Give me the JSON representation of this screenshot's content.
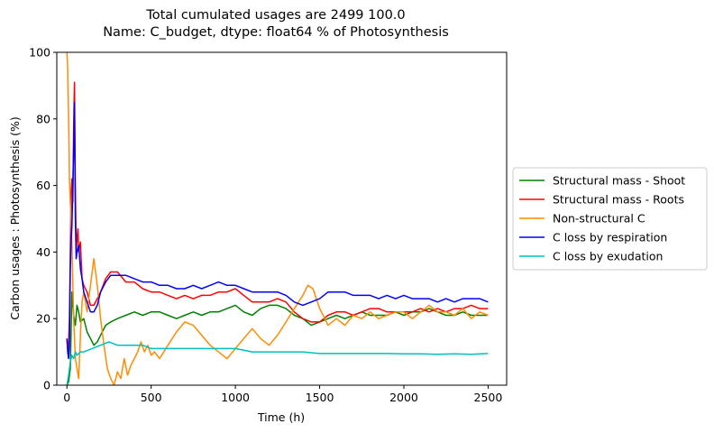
{
  "chart_data": {
    "type": "line",
    "title": [
      "Total cumulated usages are 2499    100.0",
      "Name: C_budget, dtype: float64 % of Photosynthesis"
    ],
    "xlabel": "Time (h)",
    "ylabel": "Carbon usages : Photosynthesis (%)",
    "xlim": [
      -60,
      2610
    ],
    "ylim": [
      0,
      100
    ],
    "xticks": [
      0,
      500,
      1000,
      1500,
      2000,
      2500
    ],
    "yticks": [
      0,
      20,
      40,
      60,
      80,
      100
    ],
    "grid": false,
    "legend_position": "outside-right",
    "series": [
      {
        "name": "Structural mass - Shoot",
        "color": "#008000",
        "points": [
          [
            0,
            0
          ],
          [
            10,
            1
          ],
          [
            20,
            5
          ],
          [
            30,
            28
          ],
          [
            40,
            21
          ],
          [
            50,
            18
          ],
          [
            60,
            24
          ],
          [
            70,
            22
          ],
          [
            80,
            19
          ],
          [
            100,
            20
          ],
          [
            120,
            16
          ],
          [
            140,
            14
          ],
          [
            160,
            12
          ],
          [
            180,
            13
          ],
          [
            200,
            15
          ],
          [
            230,
            18
          ],
          [
            260,
            19
          ],
          [
            300,
            20
          ],
          [
            350,
            21
          ],
          [
            400,
            22
          ],
          [
            450,
            21
          ],
          [
            500,
            22
          ],
          [
            550,
            22
          ],
          [
            600,
            21
          ],
          [
            650,
            20
          ],
          [
            700,
            21
          ],
          [
            750,
            22
          ],
          [
            800,
            21
          ],
          [
            850,
            22
          ],
          [
            900,
            22
          ],
          [
            950,
            23
          ],
          [
            1000,
            24
          ],
          [
            1050,
            22
          ],
          [
            1100,
            21
          ],
          [
            1150,
            23
          ],
          [
            1200,
            24
          ],
          [
            1250,
            24
          ],
          [
            1300,
            23
          ],
          [
            1350,
            21
          ],
          [
            1400,
            20
          ],
          [
            1450,
            18
          ],
          [
            1500,
            19
          ],
          [
            1550,
            20
          ],
          [
            1600,
            21
          ],
          [
            1650,
            20
          ],
          [
            1700,
            21
          ],
          [
            1750,
            22
          ],
          [
            1800,
            21
          ],
          [
            1850,
            21
          ],
          [
            1900,
            21
          ],
          [
            1950,
            22
          ],
          [
            2000,
            21
          ],
          [
            2050,
            22
          ],
          [
            2100,
            22
          ],
          [
            2150,
            23
          ],
          [
            2200,
            22
          ],
          [
            2250,
            21
          ],
          [
            2300,
            21
          ],
          [
            2350,
            22
          ],
          [
            2400,
            21
          ],
          [
            2450,
            21
          ],
          [
            2500,
            21
          ]
        ]
      },
      {
        "name": "Structural mass - Roots",
        "color": "#ff0000",
        "points": [
          [
            0,
            14
          ],
          [
            8,
            10
          ],
          [
            15,
            20
          ],
          [
            20,
            40
          ],
          [
            25,
            58
          ],
          [
            30,
            62
          ],
          [
            35,
            55
          ],
          [
            40,
            78
          ],
          [
            45,
            91
          ],
          [
            50,
            60
          ],
          [
            55,
            40
          ],
          [
            60,
            44
          ],
          [
            65,
            47
          ],
          [
            70,
            40
          ],
          [
            80,
            43
          ],
          [
            90,
            32
          ],
          [
            100,
            30
          ],
          [
            120,
            28
          ],
          [
            140,
            24
          ],
          [
            160,
            24
          ],
          [
            180,
            26
          ],
          [
            200,
            28
          ],
          [
            230,
            32
          ],
          [
            260,
            34
          ],
          [
            300,
            34
          ],
          [
            350,
            31
          ],
          [
            400,
            31
          ],
          [
            450,
            29
          ],
          [
            500,
            28
          ],
          [
            550,
            28
          ],
          [
            600,
            27
          ],
          [
            650,
            26
          ],
          [
            700,
            27
          ],
          [
            750,
            26
          ],
          [
            800,
            27
          ],
          [
            850,
            27
          ],
          [
            900,
            28
          ],
          [
            950,
            28
          ],
          [
            1000,
            29
          ],
          [
            1050,
            27
          ],
          [
            1100,
            25
          ],
          [
            1150,
            25
          ],
          [
            1200,
            25
          ],
          [
            1250,
            26
          ],
          [
            1300,
            25
          ],
          [
            1350,
            22
          ],
          [
            1400,
            20
          ],
          [
            1450,
            19
          ],
          [
            1500,
            19
          ],
          [
            1550,
            21
          ],
          [
            1600,
            22
          ],
          [
            1650,
            22
          ],
          [
            1700,
            21
          ],
          [
            1750,
            22
          ],
          [
            1800,
            23
          ],
          [
            1850,
            23
          ],
          [
            1900,
            22
          ],
          [
            1950,
            22
          ],
          [
            2000,
            22
          ],
          [
            2050,
            22
          ],
          [
            2100,
            23
          ],
          [
            2150,
            22
          ],
          [
            2200,
            23
          ],
          [
            2250,
            22
          ],
          [
            2300,
            23
          ],
          [
            2350,
            23
          ],
          [
            2400,
            24
          ],
          [
            2450,
            23
          ],
          [
            2500,
            23
          ]
        ]
      },
      {
        "name": "Non-structural C",
        "color": "#ff8c00",
        "points": [
          [
            0,
            100
          ],
          [
            5,
            95
          ],
          [
            10,
            80
          ],
          [
            15,
            62
          ],
          [
            20,
            55
          ],
          [
            25,
            50
          ],
          [
            30,
            42
          ],
          [
            40,
            20
          ],
          [
            50,
            8
          ],
          [
            60,
            5
          ],
          [
            70,
            2
          ],
          [
            80,
            15
          ],
          [
            90,
            25
          ],
          [
            100,
            28
          ],
          [
            120,
            22
          ],
          [
            140,
            30
          ],
          [
            160,
            38
          ],
          [
            180,
            30
          ],
          [
            200,
            20
          ],
          [
            220,
            12
          ],
          [
            240,
            5
          ],
          [
            260,
            2
          ],
          [
            280,
            0
          ],
          [
            300,
            4
          ],
          [
            320,
            2
          ],
          [
            340,
            8
          ],
          [
            360,
            3
          ],
          [
            380,
            6
          ],
          [
            400,
            8
          ],
          [
            420,
            10
          ],
          [
            440,
            13
          ],
          [
            460,
            10
          ],
          [
            480,
            12
          ],
          [
            500,
            9
          ],
          [
            520,
            10
          ],
          [
            550,
            8
          ],
          [
            600,
            12
          ],
          [
            650,
            16
          ],
          [
            700,
            19
          ],
          [
            750,
            18
          ],
          [
            800,
            15
          ],
          [
            850,
            12
          ],
          [
            900,
            10
          ],
          [
            950,
            8
          ],
          [
            1000,
            11
          ],
          [
            1050,
            14
          ],
          [
            1100,
            17
          ],
          [
            1150,
            14
          ],
          [
            1200,
            12
          ],
          [
            1250,
            15
          ],
          [
            1300,
            19
          ],
          [
            1350,
            23
          ],
          [
            1400,
            27
          ],
          [
            1430,
            30
          ],
          [
            1460,
            29
          ],
          [
            1500,
            23
          ],
          [
            1550,
            18
          ],
          [
            1600,
            20
          ],
          [
            1650,
            18
          ],
          [
            1700,
            21
          ],
          [
            1750,
            20
          ],
          [
            1800,
            22
          ],
          [
            1850,
            20
          ],
          [
            1900,
            21
          ],
          [
            1950,
            22
          ],
          [
            2000,
            22
          ],
          [
            2050,
            20
          ],
          [
            2100,
            22
          ],
          [
            2150,
            24
          ],
          [
            2200,
            22
          ],
          [
            2250,
            22
          ],
          [
            2300,
            21
          ],
          [
            2350,
            23
          ],
          [
            2400,
            20
          ],
          [
            2450,
            22
          ],
          [
            2500,
            21
          ]
        ]
      },
      {
        "name": "C loss by respiration",
        "color": "#0000ff",
        "points": [
          [
            0,
            14
          ],
          [
            5,
            10
          ],
          [
            10,
            8
          ],
          [
            15,
            12
          ],
          [
            20,
            35
          ],
          [
            25,
            43
          ],
          [
            30,
            48
          ],
          [
            35,
            60
          ],
          [
            40,
            71
          ],
          [
            45,
            85
          ],
          [
            50,
            50
          ],
          [
            55,
            38
          ],
          [
            60,
            40
          ],
          [
            70,
            42
          ],
          [
            80,
            35
          ],
          [
            90,
            32
          ],
          [
            100,
            28
          ],
          [
            120,
            25
          ],
          [
            140,
            22
          ],
          [
            160,
            22
          ],
          [
            180,
            24
          ],
          [
            200,
            28
          ],
          [
            230,
            31
          ],
          [
            260,
            33
          ],
          [
            300,
            33
          ],
          [
            350,
            33
          ],
          [
            400,
            32
          ],
          [
            450,
            31
          ],
          [
            500,
            31
          ],
          [
            550,
            30
          ],
          [
            600,
            30
          ],
          [
            650,
            29
          ],
          [
            700,
            29
          ],
          [
            750,
            30
          ],
          [
            800,
            29
          ],
          [
            850,
            30
          ],
          [
            900,
            31
          ],
          [
            950,
            30
          ],
          [
            1000,
            30
          ],
          [
            1050,
            29
          ],
          [
            1100,
            28
          ],
          [
            1150,
            28
          ],
          [
            1200,
            28
          ],
          [
            1250,
            28
          ],
          [
            1300,
            27
          ],
          [
            1350,
            25
          ],
          [
            1400,
            24
          ],
          [
            1450,
            25
          ],
          [
            1500,
            26
          ],
          [
            1550,
            28
          ],
          [
            1600,
            28
          ],
          [
            1650,
            28
          ],
          [
            1700,
            27
          ],
          [
            1750,
            27
          ],
          [
            1800,
            27
          ],
          [
            1850,
            26
          ],
          [
            1900,
            27
          ],
          [
            1950,
            26
          ],
          [
            2000,
            27
          ],
          [
            2050,
            26
          ],
          [
            2100,
            26
          ],
          [
            2150,
            26
          ],
          [
            2200,
            25
          ],
          [
            2250,
            26
          ],
          [
            2300,
            25
          ],
          [
            2350,
            26
          ],
          [
            2400,
            26
          ],
          [
            2450,
            26
          ],
          [
            2500,
            25
          ]
        ]
      },
      {
        "name": "C loss by exudation",
        "color": "#00bfbf",
        "points": [
          [
            0,
            0
          ],
          [
            10,
            3
          ],
          [
            20,
            7
          ],
          [
            30,
            9
          ],
          [
            40,
            8
          ],
          [
            50,
            10
          ],
          [
            60,
            9
          ],
          [
            80,
            10
          ],
          [
            100,
            10
          ],
          [
            150,
            11
          ],
          [
            200,
            12
          ],
          [
            250,
            13
          ],
          [
            300,
            12
          ],
          [
            350,
            12
          ],
          [
            400,
            12
          ],
          [
            450,
            12
          ],
          [
            500,
            11
          ],
          [
            600,
            11
          ],
          [
            700,
            11
          ],
          [
            800,
            11
          ],
          [
            900,
            11
          ],
          [
            1000,
            11
          ],
          [
            1100,
            10
          ],
          [
            1200,
            10
          ],
          [
            1300,
            10
          ],
          [
            1400,
            10
          ],
          [
            1500,
            9.5
          ],
          [
            1600,
            9.5
          ],
          [
            1700,
            9.5
          ],
          [
            1800,
            9.5
          ],
          [
            1900,
            9.5
          ],
          [
            2000,
            9.4
          ],
          [
            2100,
            9.4
          ],
          [
            2200,
            9.3
          ],
          [
            2300,
            9.4
          ],
          [
            2400,
            9.3
          ],
          [
            2500,
            9.5
          ]
        ]
      }
    ]
  }
}
